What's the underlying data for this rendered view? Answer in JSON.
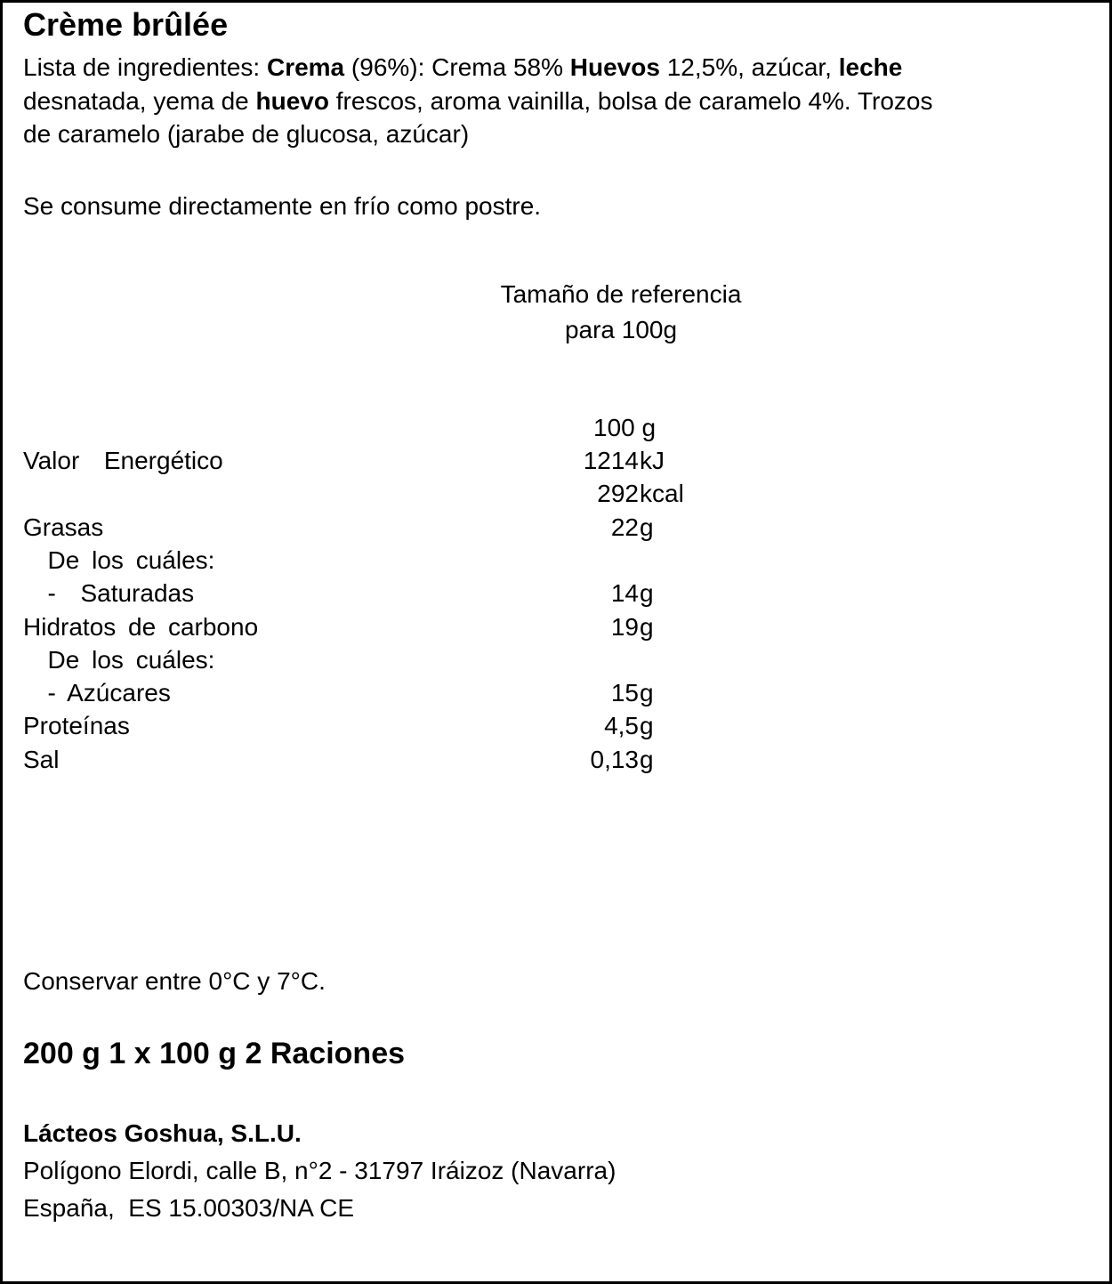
{
  "title": "Crème brûlée",
  "ingredients_lines": [
    [
      {
        "t": "Lista de ingredientes: ",
        "b": false
      },
      {
        "t": "Crema",
        "b": true
      },
      {
        "t": " (96%): Crema 58% ",
        "b": false
      },
      {
        "t": "Huevos",
        "b": true
      },
      {
        "t": " 12,5%, azúcar, ",
        "b": false
      },
      {
        "t": "leche",
        "b": true
      }
    ],
    [
      {
        "t": "desnatada, yema de ",
        "b": false
      },
      {
        "t": "huevo",
        "b": true
      },
      {
        "t": " frescos, aroma vainilla, bolsa de caramelo 4%. Trozos",
        "b": false
      }
    ],
    [
      {
        "t": "de caramelo (jarabe de glucosa, azúcar)",
        "b": false
      }
    ]
  ],
  "usage": "Se consume directamente en frío como postre.",
  "reference": {
    "line1": "Tamaño de referencia",
    "line2": "para 100g"
  },
  "nutrition": {
    "column_header": "100 g",
    "rows": [
      {
        "label": "Valor  Energético",
        "value": "1214",
        "unit": "kJ"
      },
      {
        "label": "",
        "value": "292",
        "unit": "kcal"
      },
      {
        "label": "Grasas",
        "value": "22",
        "unit": "g"
      },
      {
        "label": "  De los cuáles:",
        "value": "",
        "unit": ""
      },
      {
        "label": "  -  Saturadas",
        "value": "14",
        "unit": "g"
      },
      {
        "label": "Hidratos de carbono",
        "value": "19",
        "unit": "g"
      },
      {
        "label": "  De los cuáles:",
        "value": "",
        "unit": ""
      },
      {
        "label": "  - Azúcares",
        "value": "15",
        "unit": "g"
      },
      {
        "label": "Proteínas",
        "value": "4,5",
        "unit": "g"
      },
      {
        "label": "Sal",
        "value": "0,13",
        "unit": "g"
      }
    ]
  },
  "storage": "Conservar entre 0°C y 7°C.",
  "package": "200 g 1 x 100 g  2 Raciones",
  "company": {
    "name": "Lácteos Goshua, S.L.U.",
    "address": "Polígono Elordi, calle B, n°2 - 31797 Iráizoz (Navarra)",
    "country": "España,  ES 15.00303/NA CE"
  }
}
